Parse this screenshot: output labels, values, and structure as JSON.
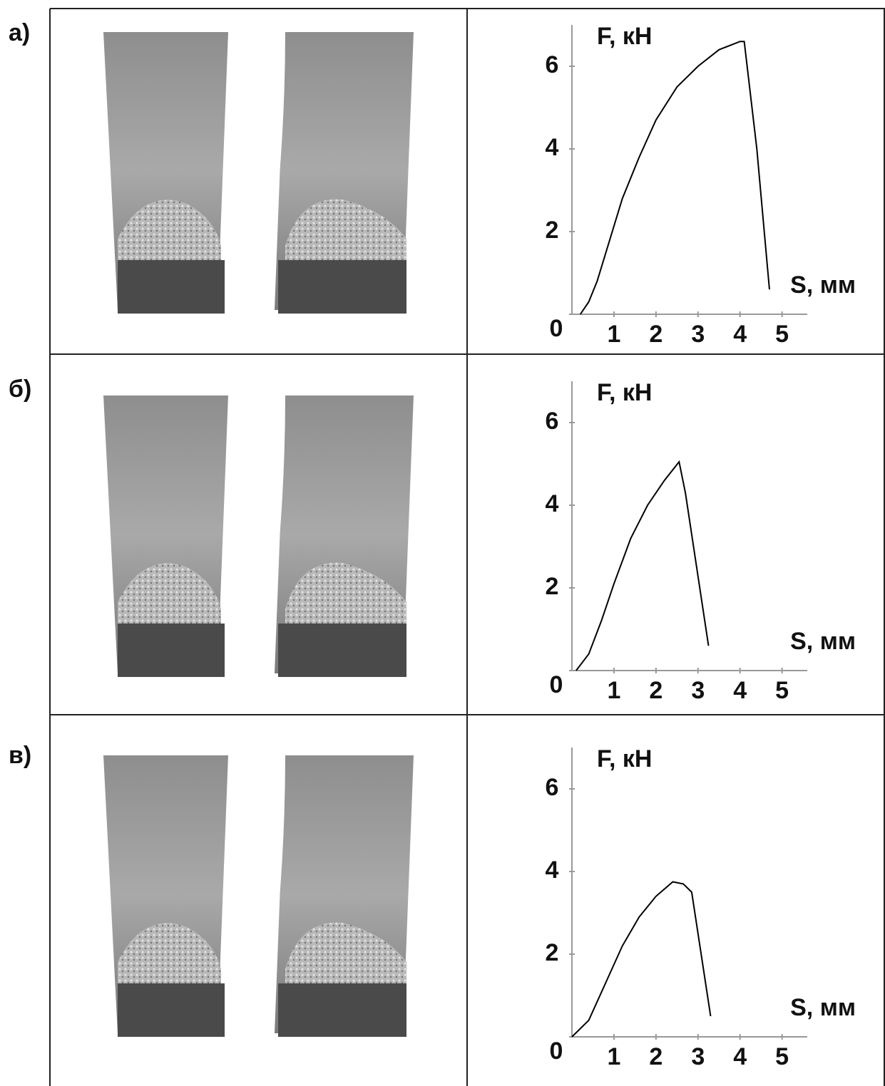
{
  "chart_data": [
    {
      "type": "line",
      "panel_label": "а)",
      "y_label": "F, кН",
      "x_label": "S, мм",
      "xlim": [
        0,
        5.6
      ],
      "ylim": [
        0,
        7
      ],
      "xticks": [
        1,
        2,
        3,
        4,
        5
      ],
      "yticks": [
        0,
        2,
        4,
        6
      ],
      "color": "#000000",
      "x": [
        0.2,
        0.4,
        0.6,
        0.9,
        1.2,
        1.6,
        2.0,
        2.5,
        3.0,
        3.5,
        4.0,
        4.1,
        4.4,
        4.7
      ],
      "values": [
        0,
        0.3,
        0.8,
        1.8,
        2.8,
        3.8,
        4.7,
        5.5,
        6.0,
        6.4,
        6.6,
        6.6,
        4.0,
        0.6
      ]
    },
    {
      "type": "line",
      "panel_label": "б)",
      "y_label": "F, кН",
      "x_label": "S, мм",
      "xlim": [
        0,
        5.6
      ],
      "ylim": [
        0,
        7
      ],
      "xticks": [
        1,
        2,
        3,
        4,
        5
      ],
      "yticks": [
        0,
        2,
        4,
        6
      ],
      "color": "#000000",
      "x": [
        0.1,
        0.4,
        0.7,
        1.0,
        1.4,
        1.8,
        2.2,
        2.55,
        2.7,
        3.25
      ],
      "values": [
        0,
        0.4,
        1.2,
        2.1,
        3.2,
        4.0,
        4.6,
        5.05,
        4.3,
        0.6
      ]
    },
    {
      "type": "line",
      "panel_label": "в)",
      "y_label": "F, кН",
      "x_label": "S, мм",
      "xlim": [
        0,
        5.6
      ],
      "ylim": [
        0,
        7
      ],
      "xticks": [
        1,
        2,
        3,
        4,
        5
      ],
      "yticks": [
        0,
        2,
        4,
        6
      ],
      "color": "#000000",
      "x": [
        0,
        0.4,
        0.8,
        1.2,
        1.6,
        2.0,
        2.4,
        2.65,
        2.85,
        3.3
      ],
      "values": [
        0,
        0.4,
        1.3,
        2.2,
        2.9,
        3.4,
        3.75,
        3.7,
        3.5,
        0.5
      ]
    }
  ]
}
